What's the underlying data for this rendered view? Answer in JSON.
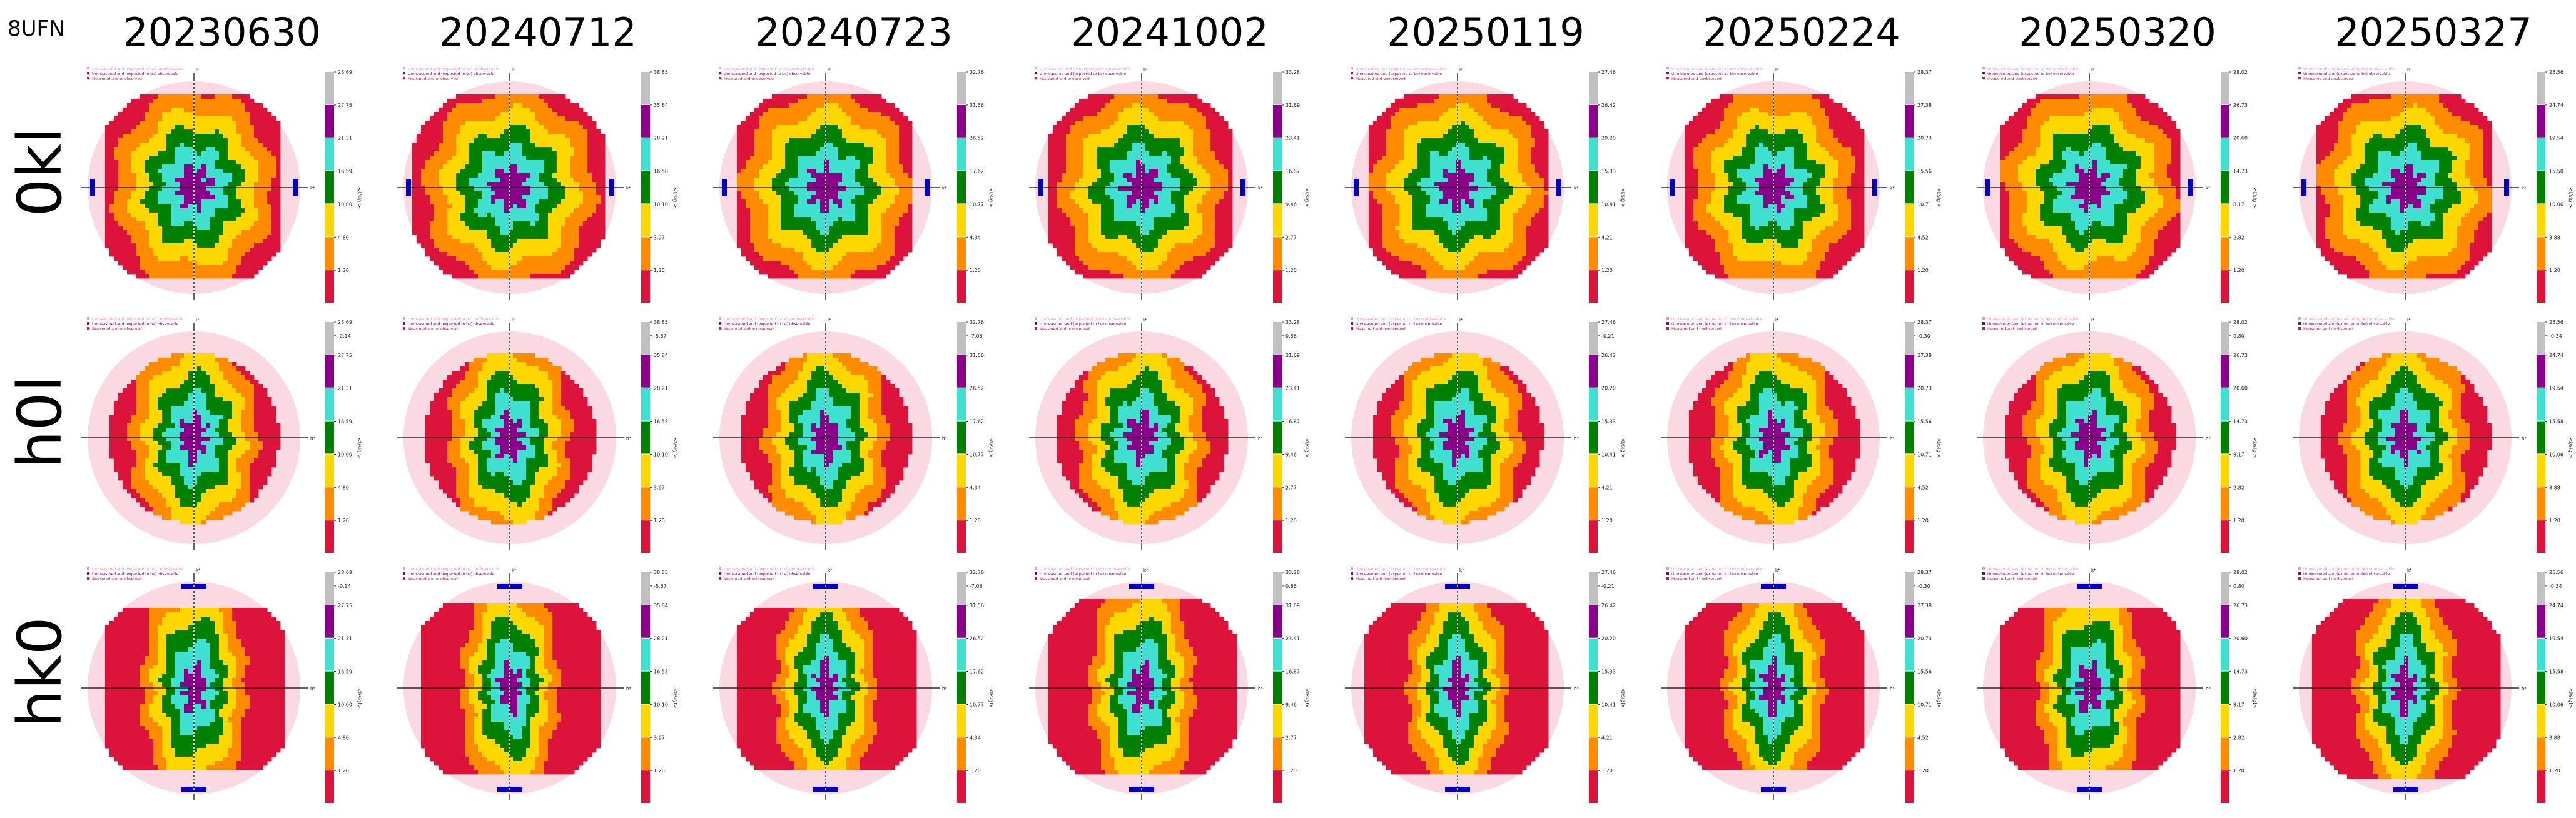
{
  "pdb_id": "8UFN",
  "columns": [
    "20230630",
    "20240712",
    "20240723",
    "20241002",
    "20250119",
    "20250224",
    "20250320",
    "20250327"
  ],
  "rows": [
    "0kl",
    "h0l",
    "hk0"
  ],
  "colorbar_label": "<I/sigI>",
  "colors": {
    "c0": "#dc143c",
    "c1": "#ff8c00",
    "c2": "#ffd700",
    "c3": "#008000",
    "c4": "#40e0d0",
    "c5": "#8b008b",
    "c6": "#c0c0c0",
    "unmeasured_fill": "#fbd9e2",
    "unmeasured_dot": "#e8a0b4",
    "systematic_absence": "#0000cd"
  },
  "chart_data": {
    "type": "heatmap",
    "description_of_grid": "8 datasets x 3 reciprocal-lattice planes",
    "legend": {
      "entries": [
        {
          "label": "Unmeasured and (expected to be) unobservable",
          "color": "#e8a0b4"
        },
        {
          "label": "Unmeasured and (expected to be) observable",
          "color": "#8b008b"
        },
        {
          "label": "Measured and unobserved",
          "color": "#dc143c"
        }
      ]
    },
    "axes": {
      "0kl": {
        "horizontal": "k*",
        "vertical": "l*"
      },
      "h0l": {
        "horizontal": "h*",
        "vertical": "l*"
      },
      "hk0": {
        "horizontal": "h*",
        "vertical": "k*"
      }
    },
    "colorbars": [
      {
        "ticks": [
          "28.69",
          "27.75",
          "21.31",
          "16.59",
          "10.00",
          "4.80",
          "1.20",
          "-0.14"
        ]
      },
      {
        "ticks": [
          "38.85",
          "35.84",
          "28.21",
          "16.58",
          "10.10",
          "3.97",
          "1.20",
          "-5.67"
        ]
      },
      {
        "ticks": [
          "32.76",
          "31.56",
          "26.52",
          "17.62",
          "10.77",
          "4.34",
          "1.20",
          "-7.06"
        ]
      },
      {
        "ticks": [
          "33.28",
          "31.69",
          "23.41",
          "16.87",
          "9.46",
          "2.77",
          "1.20",
          "0.86"
        ]
      },
      {
        "ticks": [
          "27.46",
          "26.42",
          "20.20",
          "15.33",
          "10.41",
          "4.21",
          "1.20",
          "-0.21"
        ]
      },
      {
        "ticks": [
          "28.37",
          "27.38",
          "20.73",
          "15.56",
          "10.71",
          "4.52",
          "1.20",
          "-0.30"
        ]
      },
      {
        "ticks": [
          "28.02",
          "26.73",
          "20.60",
          "14.73",
          "8.17",
          "2.82",
          "1.20",
          "0.80"
        ]
      },
      {
        "ticks": [
          "25.56",
          "24.74",
          "19.54",
          "15.58",
          "10.06",
          "3.88",
          "1.20",
          "-0.34"
        ]
      }
    ]
  }
}
